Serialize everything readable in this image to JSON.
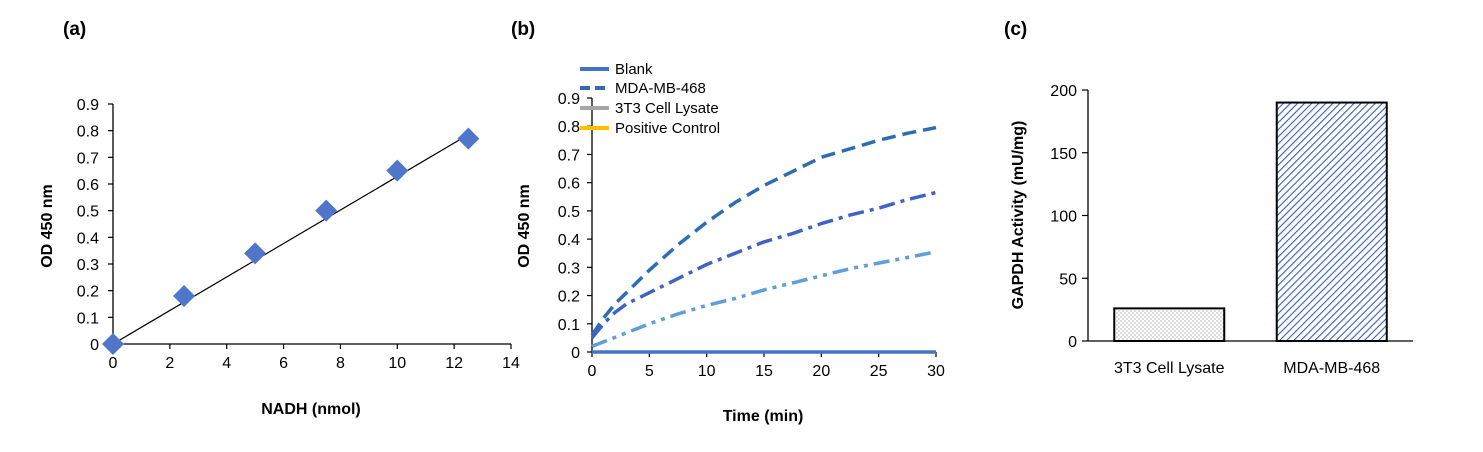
{
  "colors": {
    "diamond": "#4f76c8",
    "fit_line": "#000000",
    "blank": "#4472c4",
    "mda": "#2e6db4",
    "lysate3t3": "#3f63c2",
    "positive": "#5f9edb",
    "legend_3t3": "#a6a6a6",
    "legend_positive": "#ffc000",
    "bar_hatch": "#3a5fb0",
    "bar_dots": "#888888"
  },
  "chart_data": [
    {
      "panel_label": "(a)",
      "type": "scatter",
      "xlabel": "NADH (nmol)",
      "ylabel": "OD 450 nm",
      "xlim": [
        0,
        14
      ],
      "ylim": [
        0,
        0.9
      ],
      "xticks": [
        "0",
        "2",
        "4",
        "6",
        "8",
        "10",
        "12",
        "14"
      ],
      "yticks": [
        "0",
        "0.1",
        "0.2",
        "0.3",
        "0.4",
        "0.5",
        "0.6",
        "0.7",
        "0.8",
        "0.9"
      ],
      "points": [
        {
          "x": 0,
          "y": 0.0
        },
        {
          "x": 2.5,
          "y": 0.18
        },
        {
          "x": 5,
          "y": 0.34
        },
        {
          "x": 7.5,
          "y": 0.5
        },
        {
          "x": 10,
          "y": 0.65
        },
        {
          "x": 12.5,
          "y": 0.77
        }
      ],
      "fit_line": [
        [
          0,
          0.0
        ],
        [
          12.5,
          0.785
        ]
      ],
      "marker": "diamond",
      "grid": false
    },
    {
      "panel_label": "(b)",
      "type": "line",
      "xlabel": "Time (min)",
      "ylabel": "OD 450 nm",
      "xlim": [
        0,
        30
      ],
      "ylim": [
        0,
        0.9
      ],
      "xticks": [
        "0",
        "5",
        "10",
        "15",
        "20",
        "25",
        "30"
      ],
      "yticks": [
        "0",
        "0.1",
        "0.2",
        "0.3",
        "0.4",
        "0.5",
        "0.6",
        "0.7",
        "0.8",
        "0.9"
      ],
      "legend_position": "top-left",
      "legend": [
        "Blank",
        "MDA-MB-468",
        "3T3 Cell Lysate",
        "Positive Control"
      ],
      "series": [
        {
          "name": "Blank",
          "style": "solid",
          "x": [
            0,
            5,
            10,
            15,
            20,
            25,
            30
          ],
          "y": [
            0.0,
            0.0,
            0.0,
            0.0,
            0.0,
            0.0,
            0.0
          ]
        },
        {
          "name": "MDA-MB-468",
          "style": "dash",
          "x": [
            0,
            1,
            2,
            3,
            5,
            7.5,
            10,
            12.5,
            15,
            17.5,
            20,
            22.5,
            25,
            27.5,
            30
          ],
          "y": [
            0.06,
            0.12,
            0.17,
            0.21,
            0.29,
            0.38,
            0.46,
            0.53,
            0.59,
            0.64,
            0.69,
            0.72,
            0.75,
            0.775,
            0.795
          ]
        },
        {
          "name": "3T3 Cell Lysate",
          "style": "dash-dot",
          "x": [
            0,
            1,
            2,
            3,
            5,
            7.5,
            10,
            12.5,
            15,
            17.5,
            20,
            22.5,
            25,
            27.5,
            30
          ],
          "y": [
            0.05,
            0.1,
            0.14,
            0.17,
            0.21,
            0.26,
            0.31,
            0.35,
            0.39,
            0.42,
            0.455,
            0.485,
            0.51,
            0.54,
            0.565
          ]
        },
        {
          "name": "Positive Control",
          "style": "dash-dot-dot",
          "x": [
            0,
            2.5,
            5,
            7.5,
            10,
            12.5,
            15,
            17.5,
            20,
            22.5,
            25,
            27.5,
            30
          ],
          "y": [
            0.02,
            0.06,
            0.1,
            0.135,
            0.165,
            0.19,
            0.22,
            0.245,
            0.27,
            0.295,
            0.315,
            0.335,
            0.355
          ]
        }
      ],
      "grid": false
    },
    {
      "panel_label": "(c)",
      "type": "bar",
      "ylabel": "GAPDH Activity (mU/mg)",
      "ylim": [
        0,
        200
      ],
      "yticks": [
        "0",
        "50",
        "100",
        "150",
        "200"
      ],
      "categories": [
        "3T3 Cell Lysate",
        "MDA-MB-468"
      ],
      "values": [
        26,
        190
      ],
      "fills": [
        "dots",
        "hatch"
      ],
      "grid": false
    }
  ]
}
